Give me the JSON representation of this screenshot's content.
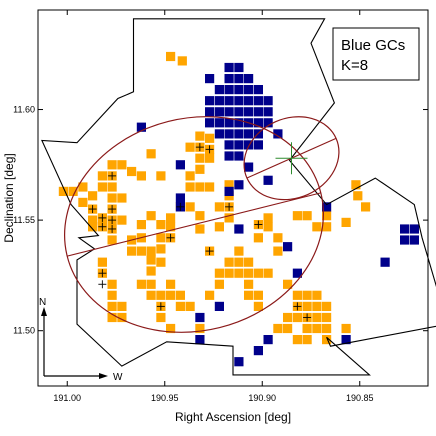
{
  "chart_data": {
    "type": "scatter",
    "title": "",
    "xlabel": "Right Ascension [deg]",
    "ylabel": "Declination [deg]",
    "xlim": [
      191.015,
      190.815
    ],
    "ylim": [
      11.475,
      11.645
    ],
    "x_ticks": [
      191.0,
      190.95,
      190.9,
      190.85
    ],
    "x_tick_labels": [
      "191.00",
      "190.95",
      "190.90",
      "190.85"
    ],
    "y_ticks": [
      11.5,
      11.55,
      11.6
    ],
    "y_tick_labels": [
      "11.50",
      "11.55",
      "11.60"
    ],
    "grid": false,
    "legend": {
      "placement": "top-right",
      "lines": [
        "Blue GCs",
        "K=8"
      ]
    },
    "compass": {
      "north_label": "N",
      "west_label": "W"
    },
    "pixel_size_deg": 0.005,
    "colors": {
      "orange": "#ffa500",
      "navy": "#00008b",
      "ellipse": "#8b1a1a",
      "center_cross": "#2e8b2e",
      "footprint": "#000000"
    },
    "series": [
      {
        "name": "orange",
        "points": [
          [
            190.947,
            11.624
          ],
          [
            190.941,
            11.622
          ],
          [
            190.932,
            11.588
          ],
          [
            190.927,
            11.587
          ],
          [
            190.937,
            11.583
          ],
          [
            190.932,
            11.583
          ],
          [
            190.927,
            11.582
          ],
          [
            190.957,
            11.58
          ],
          [
            190.932,
            11.578
          ],
          [
            190.927,
            11.578
          ],
          [
            190.977,
            11.575
          ],
          [
            190.972,
            11.575
          ],
          [
            190.967,
            11.572
          ],
          [
            190.932,
            11.573
          ],
          [
            190.982,
            11.57
          ],
          [
            190.977,
            11.57
          ],
          [
            190.962,
            11.57
          ],
          [
            190.952,
            11.57
          ],
          [
            190.937,
            11.57
          ],
          [
            190.992,
            11.565
          ],
          [
            190.982,
            11.565
          ],
          [
            190.977,
            11.565
          ],
          [
            190.937,
            11.565
          ],
          [
            190.932,
            11.565
          ],
          [
            190.927,
            11.565
          ],
          [
            190.917,
            11.566
          ],
          [
            190.852,
            11.566
          ],
          [
            191.002,
            11.563
          ],
          [
            190.997,
            11.563
          ],
          [
            190.987,
            11.561
          ],
          [
            190.977,
            11.56
          ],
          [
            190.972,
            11.56
          ],
          [
            190.917,
            11.561
          ],
          [
            190.851,
            11.561
          ],
          [
            190.992,
            11.558
          ],
          [
            190.987,
            11.555
          ],
          [
            190.977,
            11.555
          ],
          [
            190.942,
            11.556
          ],
          [
            190.937,
            11.556
          ],
          [
            190.922,
            11.556
          ],
          [
            190.917,
            11.556
          ],
          [
            190.847,
            11.556
          ],
          [
            190.987,
            11.55
          ],
          [
            190.982,
            11.551
          ],
          [
            190.977,
            11.55
          ],
          [
            190.972,
            11.55
          ],
          [
            190.957,
            11.552
          ],
          [
            190.947,
            11.551
          ],
          [
            190.932,
            11.552
          ],
          [
            190.917,
            11.551
          ],
          [
            190.897,
            11.551
          ],
          [
            190.882,
            11.552
          ],
          [
            190.877,
            11.552
          ],
          [
            190.867,
            11.552
          ],
          [
            190.987,
            11.547
          ],
          [
            190.982,
            11.547
          ],
          [
            190.977,
            11.546
          ],
          [
            190.962,
            11.548
          ],
          [
            190.952,
            11.548
          ],
          [
            190.947,
            11.547
          ],
          [
            190.932,
            11.546
          ],
          [
            190.922,
            11.547
          ],
          [
            190.902,
            11.548
          ],
          [
            190.897,
            11.547
          ],
          [
            190.872,
            11.547
          ],
          [
            190.867,
            11.547
          ],
          [
            190.857,
            11.549
          ],
          [
            190.977,
            11.541
          ],
          [
            190.967,
            11.541
          ],
          [
            190.962,
            11.542
          ],
          [
            190.952,
            11.542
          ],
          [
            190.947,
            11.542
          ],
          [
            190.902,
            11.542
          ],
          [
            190.892,
            11.542
          ],
          [
            190.967,
            11.536
          ],
          [
            190.962,
            11.536
          ],
          [
            190.957,
            11.536
          ],
          [
            190.952,
            11.537
          ],
          [
            190.927,
            11.536
          ],
          [
            190.912,
            11.536
          ],
          [
            190.892,
            11.536
          ],
          [
            190.982,
            11.531
          ],
          [
            190.957,
            11.532
          ],
          [
            190.952,
            11.531
          ],
          [
            190.917,
            11.531
          ],
          [
            190.912,
            11.531
          ],
          [
            190.907,
            11.531
          ],
          [
            190.982,
            11.526
          ],
          [
            190.957,
            11.527
          ],
          [
            190.922,
            11.526
          ],
          [
            190.917,
            11.526
          ],
          [
            190.912,
            11.526
          ],
          [
            190.907,
            11.526
          ],
          [
            190.902,
            11.526
          ],
          [
            190.897,
            11.526
          ],
          [
            190.977,
            11.521
          ],
          [
            190.962,
            11.521
          ],
          [
            190.957,
            11.521
          ],
          [
            190.947,
            11.521
          ],
          [
            190.922,
            11.521
          ],
          [
            190.907,
            11.521
          ],
          [
            190.887,
            11.521
          ],
          [
            190.977,
            11.516
          ],
          [
            190.957,
            11.516
          ],
          [
            190.952,
            11.516
          ],
          [
            190.947,
            11.516
          ],
          [
            190.942,
            11.516
          ],
          [
            190.927,
            11.516
          ],
          [
            190.907,
            11.516
          ],
          [
            190.902,
            11.516
          ],
          [
            190.882,
            11.516
          ],
          [
            190.877,
            11.516
          ],
          [
            190.872,
            11.516
          ],
          [
            190.977,
            11.511
          ],
          [
            190.972,
            11.511
          ],
          [
            190.952,
            11.511
          ],
          [
            190.942,
            11.511
          ],
          [
            190.937,
            11.511
          ],
          [
            190.902,
            11.511
          ],
          [
            190.882,
            11.511
          ],
          [
            190.877,
            11.511
          ],
          [
            190.872,
            11.511
          ],
          [
            190.867,
            11.511
          ],
          [
            190.977,
            11.506
          ],
          [
            190.972,
            11.506
          ],
          [
            190.952,
            11.506
          ],
          [
            190.887,
            11.506
          ],
          [
            190.882,
            11.506
          ],
          [
            190.877,
            11.506
          ],
          [
            190.872,
            11.506
          ],
          [
            190.867,
            11.506
          ],
          [
            190.947,
            11.501
          ],
          [
            190.932,
            11.501
          ],
          [
            190.892,
            11.501
          ],
          [
            190.887,
            11.501
          ],
          [
            190.877,
            11.501
          ],
          [
            190.872,
            11.501
          ],
          [
            190.867,
            11.501
          ],
          [
            190.857,
            11.501
          ],
          [
            190.882,
            11.496
          ],
          [
            190.877,
            11.496
          ],
          [
            190.867,
            11.496
          ]
        ]
      },
      {
        "name": "navy",
        "points": [
          [
            190.917,
            11.619
          ],
          [
            190.912,
            11.619
          ],
          [
            190.927,
            11.614
          ],
          [
            190.917,
            11.614
          ],
          [
            190.912,
            11.614
          ],
          [
            190.907,
            11.614
          ],
          [
            190.922,
            11.609
          ],
          [
            190.917,
            11.609
          ],
          [
            190.912,
            11.609
          ],
          [
            190.907,
            11.609
          ],
          [
            190.902,
            11.609
          ],
          [
            190.927,
            11.604
          ],
          [
            190.922,
            11.604
          ],
          [
            190.917,
            11.604
          ],
          [
            190.912,
            11.604
          ],
          [
            190.907,
            11.604
          ],
          [
            190.902,
            11.604
          ],
          [
            190.897,
            11.604
          ],
          [
            190.927,
            11.599
          ],
          [
            190.922,
            11.599
          ],
          [
            190.917,
            11.599
          ],
          [
            190.912,
            11.599
          ],
          [
            190.907,
            11.599
          ],
          [
            190.902,
            11.599
          ],
          [
            190.897,
            11.599
          ],
          [
            190.927,
            11.594
          ],
          [
            190.922,
            11.594
          ],
          [
            190.917,
            11.594
          ],
          [
            190.912,
            11.594
          ],
          [
            190.907,
            11.594
          ],
          [
            190.902,
            11.594
          ],
          [
            190.897,
            11.594
          ],
          [
            190.962,
            11.592
          ],
          [
            190.922,
            11.589
          ],
          [
            190.917,
            11.589
          ],
          [
            190.912,
            11.589
          ],
          [
            190.907,
            11.589
          ],
          [
            190.902,
            11.589
          ],
          [
            190.892,
            11.589
          ],
          [
            190.917,
            11.584
          ],
          [
            190.912,
            11.584
          ],
          [
            190.907,
            11.584
          ],
          [
            190.902,
            11.584
          ],
          [
            190.917,
            11.579
          ],
          [
            190.912,
            11.579
          ],
          [
            190.942,
            11.575
          ],
          [
            190.907,
            11.574
          ],
          [
            190.942,
            11.56
          ],
          [
            190.917,
            11.563
          ],
          [
            190.912,
            11.566
          ],
          [
            190.897,
            11.568
          ],
          [
            190.942,
            11.556
          ],
          [
            190.867,
            11.556
          ],
          [
            190.912,
            11.546
          ],
          [
            190.887,
            11.538
          ],
          [
            190.827,
            11.546
          ],
          [
            190.822,
            11.546
          ],
          [
            190.827,
            11.541
          ],
          [
            190.822,
            11.541
          ],
          [
            190.837,
            11.531
          ],
          [
            190.882,
            11.526
          ],
          [
            190.922,
            11.511
          ],
          [
            190.897,
            11.496
          ],
          [
            190.932,
            11.506
          ],
          [
            190.932,
            11.496
          ],
          [
            190.902,
            11.491
          ],
          [
            190.857,
            11.496
          ],
          [
            190.912,
            11.486
          ]
        ]
      },
      {
        "name": "cross_markers",
        "points": [
          [
            190.932,
            11.583
          ],
          [
            190.927,
            11.582
          ],
          [
            190.977,
            11.57
          ],
          [
            190.987,
            11.555
          ],
          [
            190.977,
            11.555
          ],
          [
            190.982,
            11.551
          ],
          [
            190.977,
            11.55
          ],
          [
            190.942,
            11.556
          ],
          [
            190.917,
            11.556
          ],
          [
            190.982,
            11.547
          ],
          [
            190.977,
            11.546
          ],
          [
            190.947,
            11.542
          ],
          [
            190.902,
            11.548
          ],
          [
            190.927,
            11.536
          ],
          [
            190.982,
            11.526
          ],
          [
            190.982,
            11.521
          ],
          [
            190.952,
            11.511
          ],
          [
            190.882,
            11.511
          ],
          [
            190.877,
            11.506
          ]
        ]
      }
    ],
    "ellipses": [
      {
        "cx": 190.935,
        "cy": 11.548,
        "rx_deg": 0.067,
        "ry_deg": 0.048,
        "angle_deg": 14
      },
      {
        "cx": 190.885,
        "cy": 11.578,
        "rx_deg": 0.025,
        "ry_deg": 0.018,
        "angle_deg": 24
      }
    ],
    "center_cross": {
      "x": 190.885,
      "y": 11.578
    },
    "footprint": [
      [
        190.966,
        11.641
      ],
      [
        190.868,
        11.641
      ],
      [
        190.875,
        11.63
      ],
      [
        190.863,
        11.603
      ],
      [
        190.886,
        11.577
      ],
      [
        190.867,
        11.557
      ],
      [
        190.842,
        11.569
      ],
      [
        190.822,
        11.557
      ],
      [
        190.818,
        11.542
      ],
      [
        190.805,
        11.503
      ],
      [
        190.865,
        11.493
      ],
      [
        190.867,
        11.497
      ],
      [
        190.845,
        11.48
      ],
      [
        190.915,
        11.48
      ],
      [
        190.915,
        11.493
      ],
      [
        190.949,
        11.495
      ],
      [
        190.972,
        11.484
      ],
      [
        190.995,
        11.503
      ],
      [
        190.995,
        11.532
      ],
      [
        190.986,
        11.537
      ],
      [
        190.994,
        11.542
      ],
      [
        190.984,
        11.543
      ],
      [
        190.998,
        11.557
      ],
      [
        191.013,
        11.586
      ],
      [
        190.995,
        11.585
      ],
      [
        190.974,
        11.605
      ],
      [
        190.966,
        11.608
      ]
    ]
  }
}
